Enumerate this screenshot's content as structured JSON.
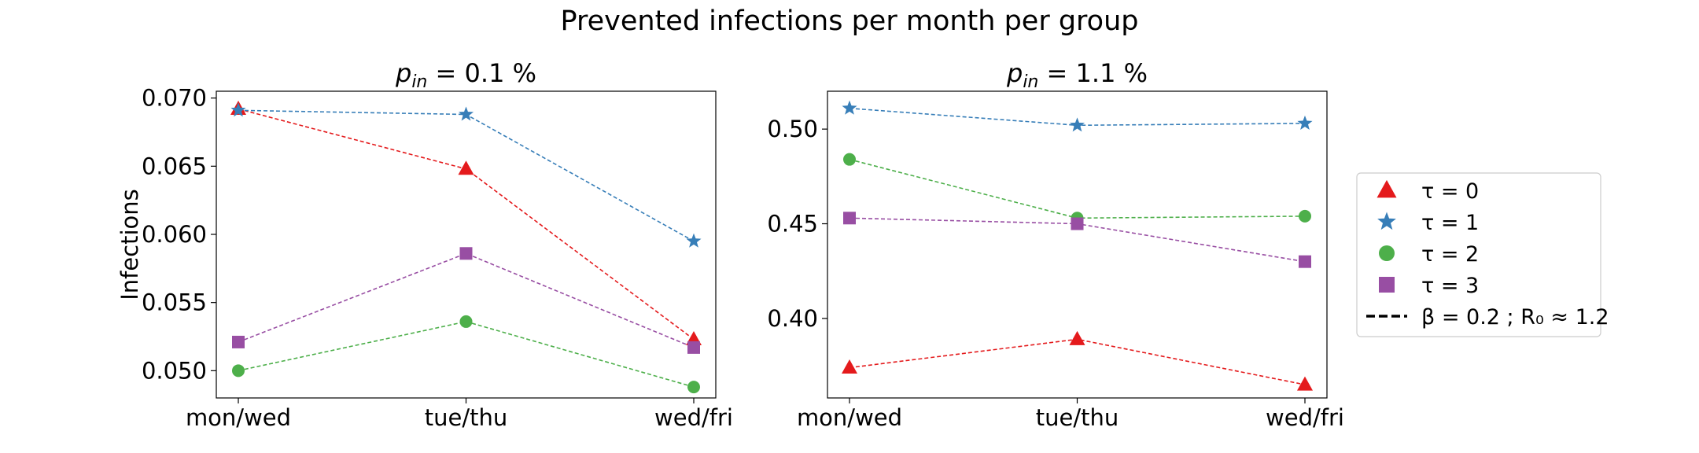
{
  "suptitle": "Prevented infections per month per group",
  "colors": {
    "tau0": "#e41a1c",
    "tau1": "#377eb8",
    "tau2": "#4daf4a",
    "tau3": "#984ea3"
  },
  "legend": {
    "placement": "right-outside",
    "entries": [
      {
        "label": "τ = 0",
        "marker": "triangle",
        "color": "#e41a1c"
      },
      {
        "label": "τ = 1",
        "marker": "star",
        "color": "#377eb8"
      },
      {
        "label": "τ = 2",
        "marker": "circle",
        "color": "#4daf4a"
      },
      {
        "label": "τ = 3",
        "marker": "square",
        "color": "#984ea3"
      },
      {
        "label": "β = 0.2 ; R₀ ≈ 1.2",
        "marker": "dashed-line",
        "color": "#000000"
      }
    ]
  },
  "chart_data": [
    {
      "type": "line",
      "title": "p_in = 0.1 %",
      "title_var": "p",
      "title_sub": "in",
      "title_rest": " = 0.1 %",
      "xlabel": "",
      "ylabel": "Infections",
      "categories": [
        "mon/wed",
        "tue/thu",
        "wed/fri"
      ],
      "ylim": [
        0.048,
        0.0705
      ],
      "yticks": [
        0.05,
        0.055,
        0.06,
        0.065,
        0.07
      ],
      "ytick_labels": [
        "0.050",
        "0.055",
        "0.060",
        "0.065",
        "0.070"
      ],
      "grid": false,
      "line_style": "dashed",
      "series": [
        {
          "name": "τ = 0",
          "marker": "triangle",
          "color": "#e41a1c",
          "values": [
            0.0692,
            0.0648,
            0.0523
          ]
        },
        {
          "name": "τ = 1",
          "marker": "star",
          "color": "#377eb8",
          "values": [
            0.0691,
            0.0688,
            0.0595
          ]
        },
        {
          "name": "τ = 2",
          "marker": "circle",
          "color": "#4daf4a",
          "values": [
            0.05,
            0.0536,
            0.0488
          ]
        },
        {
          "name": "τ = 3",
          "marker": "square",
          "color": "#984ea3",
          "values": [
            0.0521,
            0.0586,
            0.0517
          ]
        }
      ]
    },
    {
      "type": "line",
      "title": "p_in = 1.1 %",
      "title_var": "p",
      "title_sub": "in",
      "title_rest": " = 1.1 %",
      "xlabel": "",
      "ylabel": "",
      "categories": [
        "mon/wed",
        "tue/thu",
        "wed/fri"
      ],
      "ylim": [
        0.358,
        0.52
      ],
      "yticks": [
        0.4,
        0.45,
        0.5
      ],
      "ytick_labels": [
        "0.40",
        "0.45",
        "0.50"
      ],
      "grid": false,
      "line_style": "dashed",
      "series": [
        {
          "name": "τ = 0",
          "marker": "triangle",
          "color": "#e41a1c",
          "values": [
            0.374,
            0.389,
            0.365
          ]
        },
        {
          "name": "τ = 1",
          "marker": "star",
          "color": "#377eb8",
          "values": [
            0.511,
            0.502,
            0.503
          ]
        },
        {
          "name": "τ = 2",
          "marker": "circle",
          "color": "#4daf4a",
          "values": [
            0.484,
            0.453,
            0.454
          ]
        },
        {
          "name": "τ = 3",
          "marker": "square",
          "color": "#984ea3",
          "values": [
            0.453,
            0.45,
            0.43
          ]
        }
      ]
    }
  ]
}
